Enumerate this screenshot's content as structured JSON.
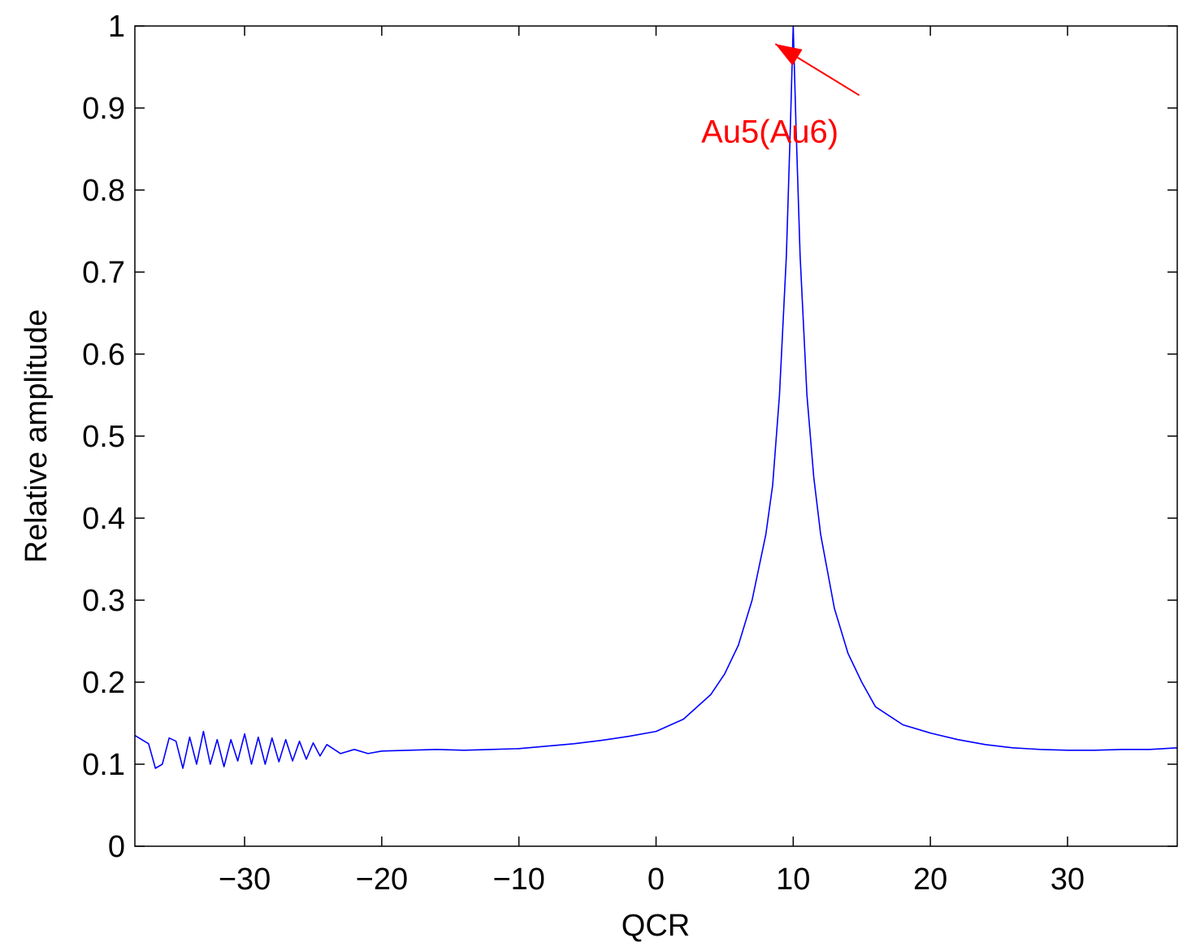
{
  "chart_data": {
    "type": "line",
    "title": "",
    "xlabel": "QCR",
    "ylabel": "Relative amplitude",
    "xlim": [
      -38,
      38
    ],
    "ylim": [
      0,
      1
    ],
    "xticks": [
      -30,
      -20,
      -10,
      0,
      10,
      20,
      30
    ],
    "xtick_labels": [
      "−30",
      "−20",
      "−10",
      "0",
      "10",
      "20",
      "30"
    ],
    "yticks": [
      0,
      0.1,
      0.2,
      0.3,
      0.4,
      0.5,
      0.6,
      0.7,
      0.8,
      0.9,
      1
    ],
    "ytick_labels": [
      "0",
      "0.1",
      "0.2",
      "0.3",
      "0.4",
      "0.5",
      "0.6",
      "0.7",
      "0.8",
      "0.9",
      "1"
    ],
    "grid": false,
    "series": [
      {
        "color": "#0000ff",
        "x": [
          -38,
          -37,
          -36.5,
          -36,
          -35.5,
          -35,
          -34.5,
          -34,
          -33.5,
          -33,
          -32.5,
          -32,
          -31.5,
          -31,
          -30.5,
          -30,
          -29.5,
          -29,
          -28.5,
          -28,
          -27.5,
          -27,
          -26.5,
          -26,
          -25.5,
          -25,
          -24.5,
          -24,
          -23,
          -22,
          -21,
          -20,
          -18,
          -16,
          -14,
          -12,
          -10,
          -8,
          -6,
          -4,
          -2,
          0,
          2,
          4,
          5,
          6,
          7,
          8,
          8.5,
          9,
          9.5,
          9.8,
          10,
          10.2,
          10.5,
          11,
          11.5,
          12,
          13,
          14,
          15,
          16,
          18,
          20,
          22,
          24,
          26,
          28,
          30,
          32,
          34,
          36,
          38
        ],
        "y": [
          0.135,
          0.125,
          0.095,
          0.1,
          0.132,
          0.128,
          0.095,
          0.133,
          0.1,
          0.14,
          0.1,
          0.13,
          0.097,
          0.13,
          0.104,
          0.137,
          0.1,
          0.133,
          0.1,
          0.132,
          0.103,
          0.13,
          0.104,
          0.128,
          0.106,
          0.126,
          0.11,
          0.124,
          0.113,
          0.118,
          0.113,
          0.116,
          0.117,
          0.118,
          0.117,
          0.118,
          0.119,
          0.122,
          0.125,
          0.129,
          0.134,
          0.14,
          0.155,
          0.185,
          0.21,
          0.245,
          0.3,
          0.38,
          0.44,
          0.55,
          0.72,
          0.88,
          1.0,
          0.88,
          0.72,
          0.55,
          0.45,
          0.38,
          0.29,
          0.235,
          0.2,
          0.17,
          0.148,
          0.138,
          0.13,
          0.124,
          0.12,
          0.118,
          0.117,
          0.117,
          0.118,
          0.118,
          0.12
        ]
      }
    ],
    "annotations": [
      {
        "text": "Au5(Au6)",
        "color": "#ff0000",
        "x": 8.3,
        "y": 0.87,
        "arrow_to": [
          10.0,
          0.99
        ]
      }
    ]
  }
}
